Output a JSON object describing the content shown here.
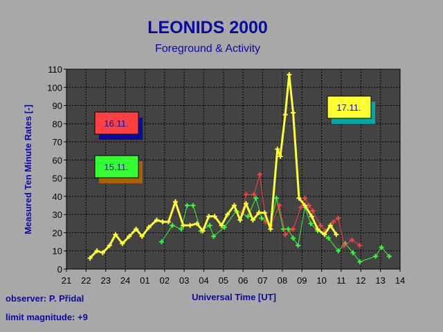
{
  "chart_data": {
    "type": "line",
    "title": "LEONIDS  2000",
    "subtitle": "Foreground & Activity",
    "xlabel": "Universal Time [UT]",
    "ylabel": "Measured Ten Minute Rates [-]",
    "x_ticks": [
      "21",
      "22",
      "23",
      "24",
      "01",
      "02",
      "03",
      "04",
      "05",
      "06",
      "07",
      "08",
      "09",
      "10",
      "11",
      "12",
      "13",
      "14"
    ],
    "y_ticks": [
      "0",
      "10",
      "20",
      "30",
      "40",
      "50",
      "60",
      "70",
      "80",
      "90",
      "100",
      "110"
    ],
    "xlim": [
      21,
      38
    ],
    "ylim": [
      0,
      110
    ],
    "grid": true,
    "legend": [
      {
        "label": "16.11.",
        "color": "#ff4040"
      },
      {
        "label": "15.11.",
        "color": "#33ff33"
      },
      {
        "label": "17.11.",
        "color": "#ffff33"
      }
    ],
    "series": [
      {
        "name": "15.11.",
        "color": "#33ff33",
        "points": [
          [
            25.85,
            15
          ],
          [
            26.4,
            24
          ],
          [
            26.85,
            22
          ],
          [
            27.15,
            35
          ],
          [
            27.45,
            35
          ],
          [
            27.85,
            21
          ],
          [
            28.3,
            24
          ],
          [
            28.5,
            18
          ],
          [
            29.05,
            23
          ],
          [
            29.65,
            32
          ],
          [
            30.25,
            29
          ],
          [
            30.65,
            39
          ],
          [
            30.95,
            28
          ],
          [
            31.4,
            24
          ],
          [
            31.7,
            39
          ],
          [
            32.05,
            22
          ],
          [
            32.3,
            22
          ],
          [
            32.55,
            17
          ],
          [
            32.8,
            13
          ],
          [
            33.15,
            34
          ],
          [
            33.45,
            25
          ],
          [
            33.8,
            21
          ],
          [
            34.35,
            17
          ],
          [
            34.85,
            10
          ],
          [
            35.2,
            14
          ],
          [
            35.6,
            9
          ],
          [
            35.95,
            4
          ],
          [
            36.75,
            7
          ],
          [
            37.05,
            12
          ],
          [
            37.45,
            7
          ]
        ]
      },
      {
        "name": "16.11.",
        "color": "#ff4040",
        "points": [
          [
            29.95,
            31
          ],
          [
            30.15,
            41
          ],
          [
            30.55,
            41
          ],
          [
            30.85,
            52
          ],
          [
            31.15,
            26
          ],
          [
            31.4,
            24
          ],
          [
            31.85,
            35
          ],
          [
            32.15,
            19
          ],
          [
            32.55,
            22
          ],
          [
            32.95,
            34
          ],
          [
            33.15,
            39
          ],
          [
            33.35,
            35
          ],
          [
            33.55,
            32
          ],
          [
            33.95,
            24
          ],
          [
            34.2,
            21
          ],
          [
            34.6,
            26
          ],
          [
            34.85,
            28
          ],
          [
            35.15,
            13
          ],
          [
            35.55,
            16
          ],
          [
            35.95,
            13
          ]
        ]
      },
      {
        "name": "17.11.",
        "color": "#ffff33",
        "points": [
          [
            22.2,
            6
          ],
          [
            22.55,
            10
          ],
          [
            22.85,
            9
          ],
          [
            23.2,
            13
          ],
          [
            23.5,
            19
          ],
          [
            23.85,
            14
          ],
          [
            24.2,
            18
          ],
          [
            24.55,
            22
          ],
          [
            24.85,
            18
          ],
          [
            25.2,
            23
          ],
          [
            25.6,
            27
          ],
          [
            25.9,
            26
          ],
          [
            26.2,
            26
          ],
          [
            26.55,
            37
          ],
          [
            26.95,
            24
          ],
          [
            27.3,
            24
          ],
          [
            27.65,
            25
          ],
          [
            27.95,
            21
          ],
          [
            28.25,
            29
          ],
          [
            28.55,
            29
          ],
          [
            28.9,
            24
          ],
          [
            29.2,
            30
          ],
          [
            29.55,
            35
          ],
          [
            29.85,
            27
          ],
          [
            30.15,
            36
          ],
          [
            30.5,
            27
          ],
          [
            30.8,
            31
          ],
          [
            31.1,
            31
          ],
          [
            31.4,
            22
          ],
          [
            31.75,
            66
          ],
          [
            31.9,
            62
          ],
          [
            32.15,
            85
          ],
          [
            32.35,
            107
          ],
          [
            32.55,
            86
          ],
          [
            32.85,
            39
          ],
          [
            33.15,
            35
          ],
          [
            33.5,
            29
          ],
          [
            33.8,
            22
          ],
          [
            34.15,
            19
          ],
          [
            34.45,
            24
          ],
          [
            34.75,
            19
          ]
        ]
      }
    ]
  },
  "footer": {
    "observer": "observer: P. Přidal",
    "limit_magnitude": "limit magnitude: +9"
  }
}
